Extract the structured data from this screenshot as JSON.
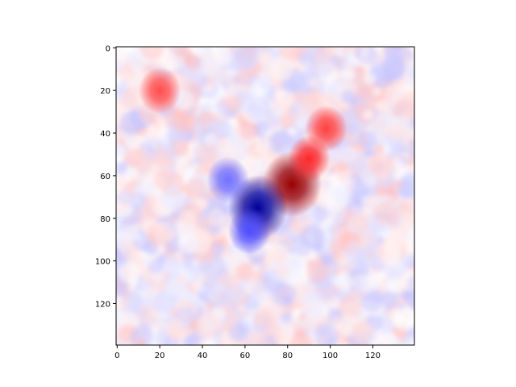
{
  "chart_data": {
    "type": "heatmap",
    "title": "",
    "xlabel": "",
    "ylabel": "",
    "colormap": "bwr",
    "colors": {
      "negative": "#0000ff",
      "zero": "#ffffff",
      "positive": "#ff0000"
    },
    "image_size": [
      140,
      140
    ],
    "xlim": [
      0,
      139
    ],
    "ylim": [
      139,
      0
    ],
    "y_axis_inverted": true,
    "x_ticks": [
      0,
      20,
      40,
      60,
      80,
      100,
      120
    ],
    "y_ticks": [
      0,
      20,
      40,
      60,
      80,
      100,
      120
    ],
    "value_range": [
      -1,
      1
    ],
    "features": [
      {
        "label": "positive_core",
        "x": 82,
        "y": 64,
        "value": 1.0
      },
      {
        "label": "positive_lobe_upper",
        "x": 98,
        "y": 38,
        "value": 0.75
      },
      {
        "label": "positive_lobe_mid",
        "x": 90,
        "y": 52,
        "value": 0.85
      },
      {
        "label": "positive_spot_topleft",
        "x": 20,
        "y": 20,
        "value": 0.7
      },
      {
        "label": "negative_core",
        "x": 66,
        "y": 75,
        "value": -1.0
      },
      {
        "label": "negative_lobe_left",
        "x": 52,
        "y": 62,
        "value": -0.55
      },
      {
        "label": "negative_lobe_lower",
        "x": 62,
        "y": 86,
        "value": -0.7
      }
    ]
  }
}
